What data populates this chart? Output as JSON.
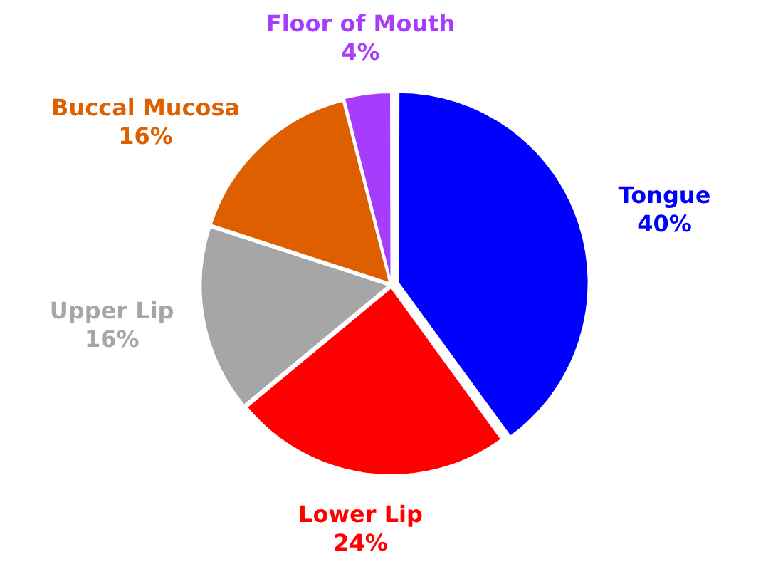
{
  "chart_data": {
    "type": "pie",
    "categories": [
      "Tongue",
      "Lower Lip",
      "Upper Lip",
      "Buccal Mucosa",
      "Floor of Mouth"
    ],
    "values": [
      40,
      24,
      16,
      16,
      4
    ],
    "colors": [
      "#0000ff",
      "#ff0000",
      "#a6a6a6",
      "#dd5f00",
      "#a83cfc"
    ],
    "value_labels": [
      "40%",
      "24%",
      "16%",
      "16%",
      "4%"
    ]
  }
}
